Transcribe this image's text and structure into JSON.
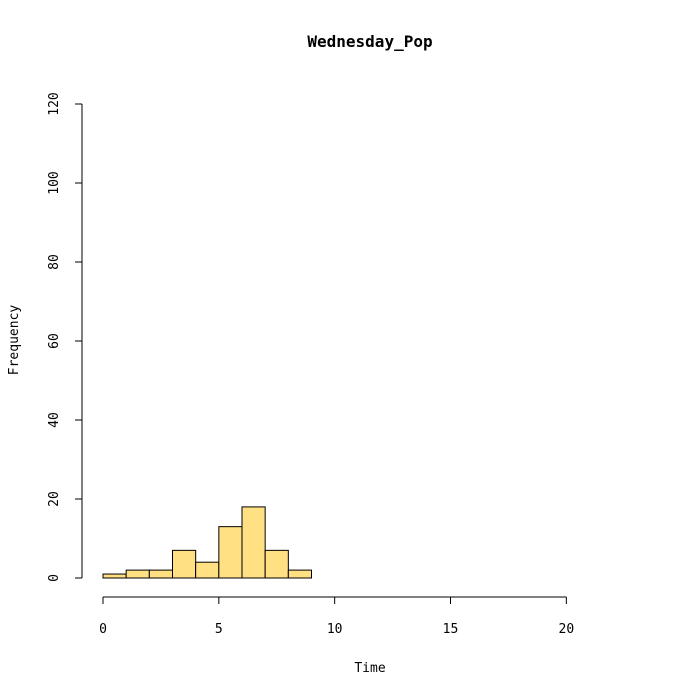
{
  "chart_data": {
    "type": "bar",
    "title": "Wednesday_Pop",
    "xlabel": "Time",
    "ylabel": "Frequency",
    "xlim": [
      0,
      24
    ],
    "ylim": [
      0,
      120
    ],
    "x_ticks": [
      0,
      5,
      10,
      15,
      20
    ],
    "y_ticks": [
      0,
      20,
      40,
      60,
      80,
      100,
      120
    ],
    "bin_width": 1,
    "bins": [
      {
        "x0": 0,
        "x1": 1,
        "count": 1
      },
      {
        "x0": 1,
        "x1": 2,
        "count": 2
      },
      {
        "x0": 2,
        "x1": 3,
        "count": 2
      },
      {
        "x0": 3,
        "x1": 4,
        "count": 7
      },
      {
        "x0": 4,
        "x1": 5,
        "count": 4
      },
      {
        "x0": 5,
        "x1": 6,
        "count": 13
      },
      {
        "x0": 6,
        "x1": 7,
        "count": 18
      },
      {
        "x0": 7,
        "x1": 8,
        "count": 7
      },
      {
        "x0": 8,
        "x1": 9,
        "count": 2
      },
      {
        "x0": 9,
        "x1": 10,
        "count": 0
      },
      {
        "x0": 10,
        "x1": 11,
        "count": 0
      },
      {
        "x0": 11,
        "x1": 12,
        "count": 0
      },
      {
        "x0": 12,
        "x1": 13,
        "count": 0
      },
      {
        "x0": 13,
        "x1": 14,
        "count": 0
      },
      {
        "x0": 14,
        "x1": 15,
        "count": 0
      },
      {
        "x0": 15,
        "x1": 16,
        "count": 0
      },
      {
        "x0": 16,
        "x1": 17,
        "count": 0
      },
      {
        "x0": 17,
        "x1": 18,
        "count": 0
      },
      {
        "x0": 18,
        "x1": 19,
        "count": 0
      },
      {
        "x0": 19,
        "x1": 20,
        "count": 0
      },
      {
        "x0": 20,
        "x1": 21,
        "count": 0
      },
      {
        "x0": 21,
        "x1": 22,
        "count": 0
      },
      {
        "x0": 22,
        "x1": 23,
        "count": 0
      },
      {
        "x0": 23,
        "x1": 24,
        "count": 0
      }
    ],
    "bar_color": "#FFE082",
    "grid": false,
    "legend": "none"
  }
}
